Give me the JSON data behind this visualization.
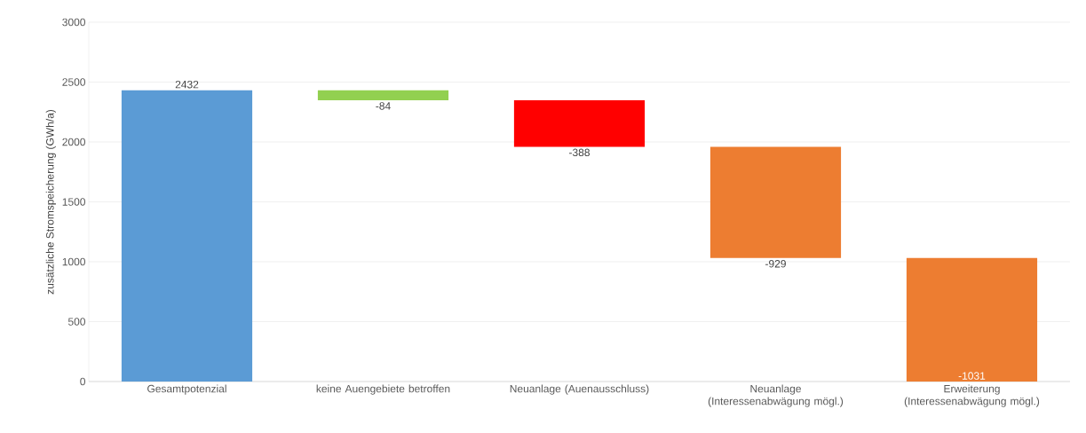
{
  "chart_data": {
    "type": "bar",
    "ylabel": "zusätzliche Stromspeicherung (GWh/a)",
    "categories": [
      "Gesamtpotenzial",
      "keine Auengebiete betroffen",
      "Neuanlage (Auenausschluss)",
      "Neuanlage (Interessenabwägung mögl.)",
      "Erweiterung (Interessenabwägung mögl.)"
    ],
    "values": [
      2432,
      -84,
      -388,
      -929,
      -1031
    ],
    "base": [
      0,
      2432,
      2348,
      1960,
      1031
    ],
    "colors": [
      "#5b9bd5",
      "#92d050",
      "#ff0000",
      "#ed7d31",
      "#ed7d31"
    ],
    "ylim": [
      0,
      3000
    ],
    "yticks": [
      0,
      500,
      1000,
      1500,
      2000,
      2500,
      3000
    ],
    "grid": "y",
    "data_labels": true
  }
}
